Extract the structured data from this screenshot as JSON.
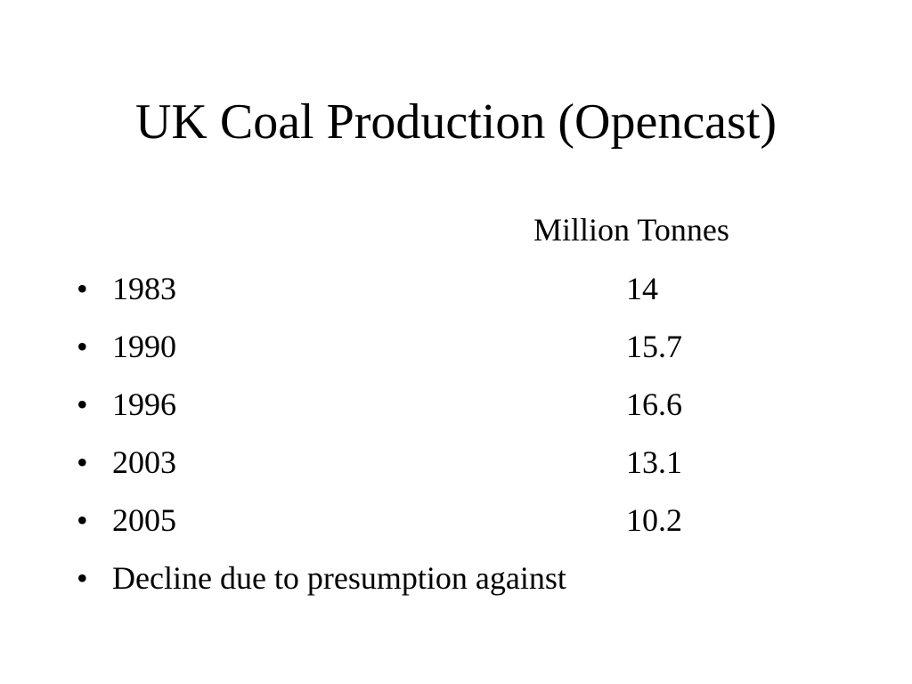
{
  "slide": {
    "title": "UK Coal Production (Opencast)",
    "unit_header": "Million Tonnes",
    "bullet_symbol": "•",
    "rows": [
      {
        "year": "1983",
        "value": "14"
      },
      {
        "year": "1990",
        "value": "15.7"
      },
      {
        "year": "1996",
        "value": "16.6"
      },
      {
        "year": "2003",
        "value": "13.1"
      },
      {
        "year": "2005",
        "value": "10.2"
      }
    ],
    "note": "Decline due to presumption against"
  }
}
